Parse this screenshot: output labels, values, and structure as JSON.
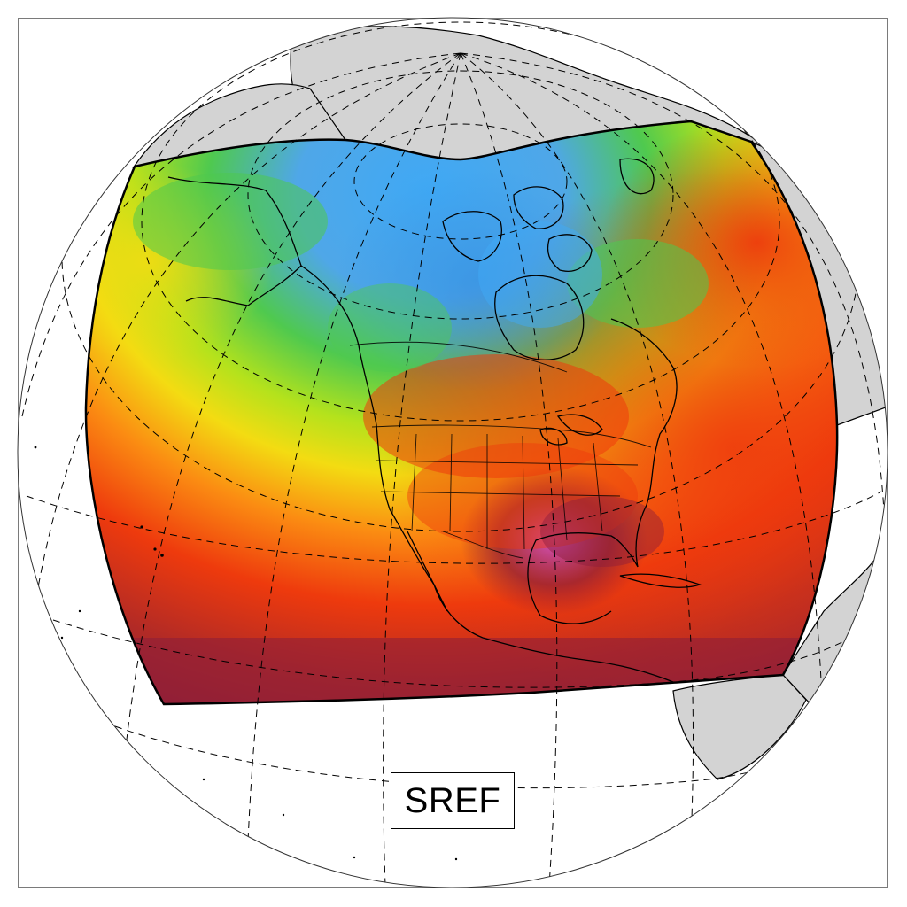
{
  "map": {
    "label": "SREF",
    "projection": "orthographic",
    "overlay": "gridlines-dashed",
    "colors": {
      "land_outside_domain": "#d3d3d3",
      "ocean_outside_domain": "#ffffff",
      "coastline": "#000000",
      "cold_blue": "#3fa9f5",
      "cool_green": "#4fc94f",
      "lime": "#b4e21c",
      "yellow": "#f3dc12",
      "orange": "#fb8c12",
      "red": "#ee3a0d",
      "dark_red": "#a42a2a",
      "maroon": "#8b1d3b",
      "magenta": "#d050d0"
    }
  }
}
